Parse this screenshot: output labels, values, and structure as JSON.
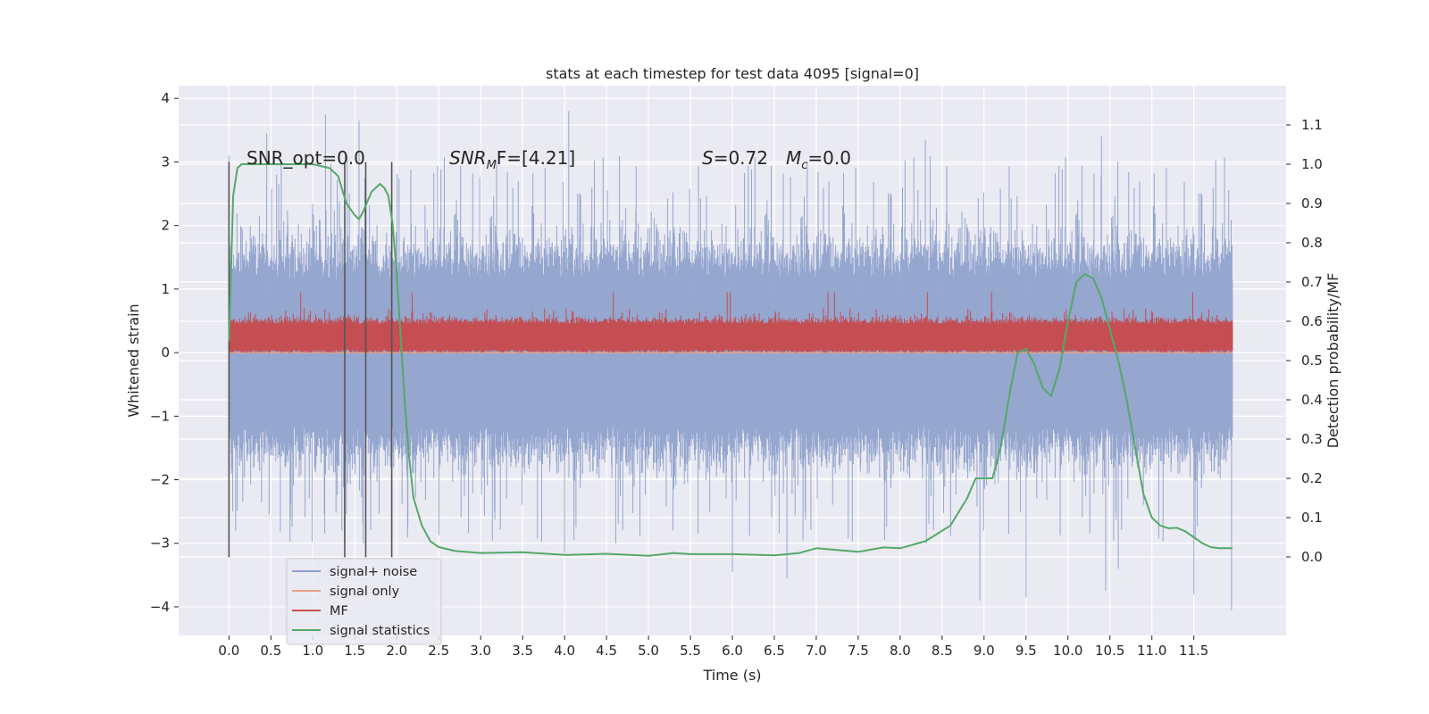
{
  "chart_data": {
    "type": "line",
    "title": "stats at each timestep for test data 4095 [signal=0]",
    "xlabel": "Time (s)",
    "ylabel_left": "Whitened strain",
    "ylabel_right": "Detection probability/MF",
    "xlim": [
      -0.6,
      12.6
    ],
    "ylim_left": [
      -4.45,
      4.2
    ],
    "ylim_right": [
      -0.2,
      1.2
    ],
    "x_ticks": [
      "0.0",
      "0.5",
      "1.0",
      "1.5",
      "2.0",
      "2.5",
      "3.0",
      "3.5",
      "4.0",
      "4.5",
      "5.0",
      "5.5",
      "6.0",
      "6.5",
      "7.0",
      "7.5",
      "8.0",
      "8.5",
      "9.0",
      "9.5",
      "10.0",
      "10.5",
      "11.0",
      "11.5"
    ],
    "y_ticks_left": [
      "−4",
      "−3",
      "−2",
      "−1",
      "0",
      "1",
      "2",
      "3",
      "4"
    ],
    "y_ticks_right": [
      "0.0",
      "0.1",
      "0.2",
      "0.3",
      "0.4",
      "0.5",
      "0.6",
      "0.7",
      "0.8",
      "0.9",
      "1.0",
      "1.1"
    ],
    "annotations": {
      "snr_opt": "SNR_opt=0.0",
      "snr_mf_sym": "SNR",
      "snr_mf_sub": "M",
      "snr_mf_rest": "F=[4.21]",
      "s_sym": "S",
      "s_val": "=0.72",
      "mc_sym": "M",
      "mc_sub": "c",
      "mc_val": "=0.0"
    },
    "series": [
      {
        "name": "signal+ noise",
        "axis": "left",
        "color": "#8c9fcb",
        "x_range": [
          0.0,
          11.96
        ],
        "envelope_typical": [
          -2.0,
          2.2
        ],
        "extremes": [
          {
            "x": 0.0,
            "y": 3.1
          },
          {
            "x": 0.0,
            "y": -2.6
          },
          {
            "x": 0.45,
            "y": 3.45
          },
          {
            "x": 1.15,
            "y": 3.75
          },
          {
            "x": 1.55,
            "y": 3.65
          },
          {
            "x": 1.6,
            "y": -3.0
          },
          {
            "x": 4.05,
            "y": 3.8
          },
          {
            "x": 4.0,
            "y": -3.15
          },
          {
            "x": 6.0,
            "y": -3.45
          },
          {
            "x": 6.65,
            "y": -3.55
          },
          {
            "x": 8.3,
            "y": 3.35
          },
          {
            "x": 8.95,
            "y": -3.9
          },
          {
            "x": 9.5,
            "y": -3.85
          },
          {
            "x": 10.4,
            "y": 3.4
          },
          {
            "x": 10.6,
            "y": -3.4
          },
          {
            "x": 10.45,
            "y": -3.75
          },
          {
            "x": 11.5,
            "y": -3.8
          },
          {
            "x": 11.95,
            "y": -4.05
          }
        ]
      },
      {
        "name": "signal only",
        "axis": "left",
        "color": "#e8a288",
        "x": [
          0.0,
          11.96
        ],
        "y": [
          0.0,
          0.0
        ]
      },
      {
        "name": "MF",
        "axis": "left",
        "color": "#c44e52",
        "x_range": [
          0.0,
          11.96
        ],
        "band": [
          0.0,
          0.45
        ],
        "peak_typical": 0.7,
        "peak_max": 0.95
      },
      {
        "name": "signal statistics",
        "axis": "right",
        "color": "#55a868",
        "x": [
          0.0,
          0.05,
          0.1,
          0.15,
          0.3,
          0.5,
          0.8,
          1.0,
          1.2,
          1.3,
          1.4,
          1.5,
          1.55,
          1.6,
          1.7,
          1.8,
          1.85,
          1.9,
          1.95,
          2.0,
          2.05,
          2.1,
          2.15,
          2.2,
          2.3,
          2.4,
          2.5,
          2.7,
          3.0,
          3.5,
          4.0,
          4.5,
          5.0,
          5.3,
          5.5,
          6.0,
          6.5,
          6.8,
          7.0,
          7.5,
          7.8,
          8.0,
          8.3,
          8.6,
          8.8,
          8.9,
          9.0,
          9.1,
          9.2,
          9.3,
          9.4,
          9.5,
          9.6,
          9.7,
          9.8,
          9.9,
          10.0,
          10.1,
          10.2,
          10.3,
          10.4,
          10.5,
          10.6,
          10.7,
          10.8,
          10.9,
          11.0,
          11.1,
          11.2,
          11.3,
          11.4,
          11.5,
          11.6,
          11.7,
          11.8,
          11.9,
          11.96
        ],
        "y": [
          0.55,
          0.92,
          0.99,
          1.0,
          1.0,
          1.0,
          1.0,
          1.0,
          0.99,
          0.97,
          0.9,
          0.87,
          0.86,
          0.88,
          0.93,
          0.95,
          0.94,
          0.92,
          0.85,
          0.72,
          0.55,
          0.38,
          0.25,
          0.15,
          0.08,
          0.04,
          0.025,
          0.015,
          0.01,
          0.012,
          0.005,
          0.008,
          0.003,
          0.01,
          0.007,
          0.007,
          0.004,
          0.01,
          0.022,
          0.013,
          0.024,
          0.022,
          0.04,
          0.08,
          0.15,
          0.2,
          0.2,
          0.2,
          0.28,
          0.41,
          0.52,
          0.53,
          0.49,
          0.43,
          0.41,
          0.48,
          0.6,
          0.7,
          0.72,
          0.71,
          0.66,
          0.58,
          0.5,
          0.4,
          0.28,
          0.16,
          0.1,
          0.08,
          0.073,
          0.074,
          0.065,
          0.05,
          0.035,
          0.025,
          0.022,
          0.022,
          0.022
        ]
      }
    ],
    "vertical_markers": [
      {
        "x": 0.0,
        "y_from": -3.22,
        "y_to": 3.0
      },
      {
        "x": 1.38,
        "y_from": -3.22,
        "y_to": 3.0
      },
      {
        "x": 1.63,
        "y_from": -3.22,
        "y_to": 3.0
      },
      {
        "x": 1.94,
        "y_from": -3.22,
        "y_to": 3.0
      }
    ],
    "legend": {
      "placement": "lower-left",
      "entries": [
        "signal+ noise",
        "signal only",
        "MF",
        "signal statistics"
      ]
    }
  }
}
